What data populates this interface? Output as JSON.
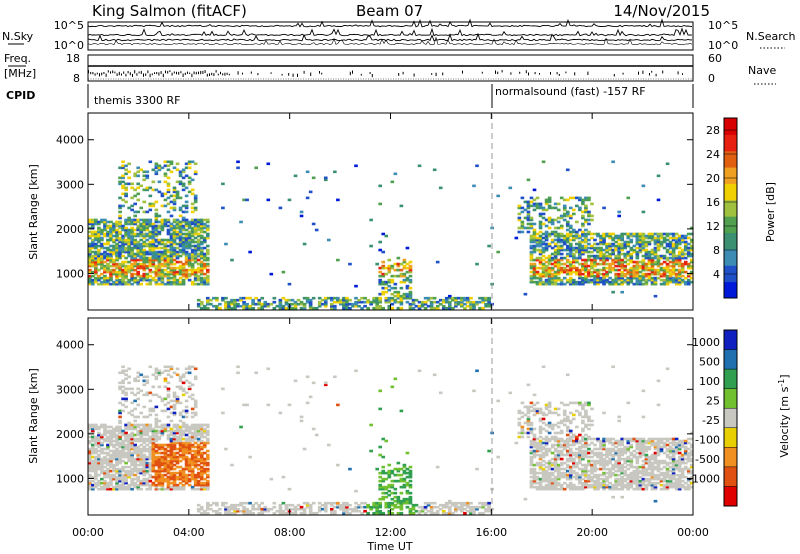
{
  "header": {
    "station": "King Salmon (fitACF)",
    "beam": "Beam 07",
    "date": "14/Nov/2015"
  },
  "summary_panels": {
    "noise": {
      "left_label": "N.Sky",
      "left_ticks": [
        "10^5",
        "10^0"
      ],
      "right_label": "N.Search",
      "right_ticks": [
        "10^5",
        "10^0"
      ]
    },
    "freq": {
      "left_label_top": "Freq.",
      "left_label_unit": "[MHz]",
      "left_ticks": [
        "18",
        "8"
      ],
      "right_label": "Nave",
      "right_ticks": [
        "60",
        "0"
      ]
    },
    "cpid": {
      "label": "CPID",
      "segment_1": "themis 3300 RF",
      "segment_2": "normalsound (fast) -157 RF"
    }
  },
  "colors": {
    "power_scale": [
      "#0018d8",
      "#2050c8",
      "#3c8cb4",
      "#3a9070",
      "#50a050",
      "#a0c040",
      "#f0d000",
      "#f0a020",
      "#e06010",
      "#e82010",
      "#d80000"
    ],
    "velocity_scale": [
      "#1020c0",
      "#2070b0",
      "#30a050",
      "#70c030",
      "#c8c8c0",
      "#e8d000",
      "#f09020",
      "#e05010",
      "#e00000"
    ]
  },
  "chart_data": [
    {
      "type": "heatmap",
      "name": "power-panel",
      "xlabel": "",
      "ylabel": "Slant Range [km]",
      "x_ticks": [
        "00:00",
        "04:00",
        "08:00",
        "12:00",
        "16:00",
        "20:00",
        "00:00"
      ],
      "x_range_hours": [
        0,
        24
      ],
      "y_ticks": [
        1000,
        2000,
        3000,
        4000
      ],
      "y_range_km": [
        180,
        4600
      ],
      "colorbar": {
        "title": "Power [dB]",
        "range": [
          0,
          30
        ],
        "ticks": [
          4,
          8,
          12,
          16,
          20,
          24,
          28
        ]
      },
      "cpid_change_hour": 16
    },
    {
      "type": "heatmap",
      "name": "velocity-panel",
      "xlabel": "Time UT",
      "ylabel": "Slant Range [km]",
      "x_ticks": [
        "00:00",
        "04:00",
        "08:00",
        "12:00",
        "16:00",
        "20:00",
        "00:00"
      ],
      "x_range_hours": [
        0,
        24
      ],
      "y_ticks": [
        1000,
        2000,
        3000,
        4000
      ],
      "y_range_km": [
        180,
        4600
      ],
      "colorbar": {
        "title": "Velocity [m s^-1]",
        "ticks": [
          "1000",
          "500",
          "100",
          "25",
          "-25",
          "-100",
          "-500",
          "-1000"
        ]
      },
      "cpid_change_hour": 16
    }
  ]
}
